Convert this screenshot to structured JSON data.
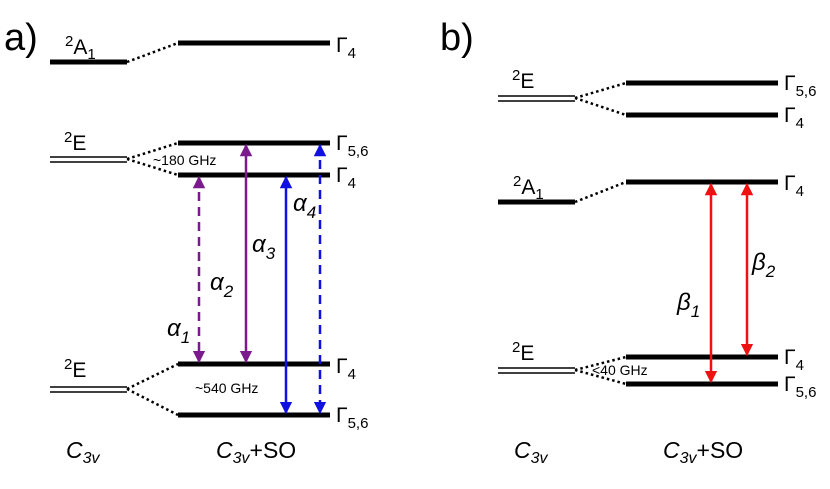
{
  "colors": {
    "purple": "#7a1a8c",
    "blue": "#1010e0",
    "red": "#ee1111",
    "level": "#000000"
  },
  "panel_a": {
    "label": "a)",
    "left_states": [
      {
        "sup": "2",
        "name": "A",
        "sub": "1"
      },
      {
        "sup": "2",
        "name": "E",
        "sub": ""
      },
      {
        "sup": "2",
        "name": "E",
        "sub": ""
      }
    ],
    "right_levels": [
      {
        "name": "Γ",
        "sub": "4"
      },
      {
        "name": "Γ",
        "sub": "5,6"
      },
      {
        "name": "Γ",
        "sub": "4"
      },
      {
        "name": "Γ",
        "sub": "4"
      },
      {
        "name": "Γ",
        "sub": "5,6"
      }
    ],
    "splittings": [
      "~180 GHz",
      "~540 GHz"
    ],
    "transitions": [
      {
        "name": "α",
        "sub": "1",
        "color": "purple",
        "style": "dashed"
      },
      {
        "name": "α",
        "sub": "2",
        "color": "purple",
        "style": "solid"
      },
      {
        "name": "α",
        "sub": "3",
        "color": "blue",
        "style": "solid"
      },
      {
        "name": "α",
        "sub": "4",
        "color": "blue",
        "style": "dashed"
      }
    ],
    "xlabel_left": {
      "main": "C",
      "sub": "3v",
      "suffix": ""
    },
    "xlabel_right": {
      "main": "C",
      "sub": "3v",
      "suffix": "+SO"
    }
  },
  "panel_b": {
    "label": "b)",
    "left_states": [
      {
        "sup": "2",
        "name": "E",
        "sub": ""
      },
      {
        "sup": "2",
        "name": "A",
        "sub": "1"
      },
      {
        "sup": "2",
        "name": "E",
        "sub": ""
      }
    ],
    "right_levels": [
      {
        "name": "Γ",
        "sub": "5,6"
      },
      {
        "name": "Γ",
        "sub": "4"
      },
      {
        "name": "Γ",
        "sub": "4"
      },
      {
        "name": "Γ",
        "sub": "4"
      },
      {
        "name": "Γ",
        "sub": "5,6"
      }
    ],
    "splittings": [
      "<40 GHz"
    ],
    "transitions": [
      {
        "name": "β",
        "sub": "1",
        "color": "red",
        "style": "solid"
      },
      {
        "name": "β",
        "sub": "2",
        "color": "red",
        "style": "solid"
      }
    ],
    "xlabel_left": {
      "main": "C",
      "sub": "3v",
      "suffix": ""
    },
    "xlabel_right": {
      "main": "C",
      "sub": "3v",
      "suffix": "+SO"
    }
  }
}
